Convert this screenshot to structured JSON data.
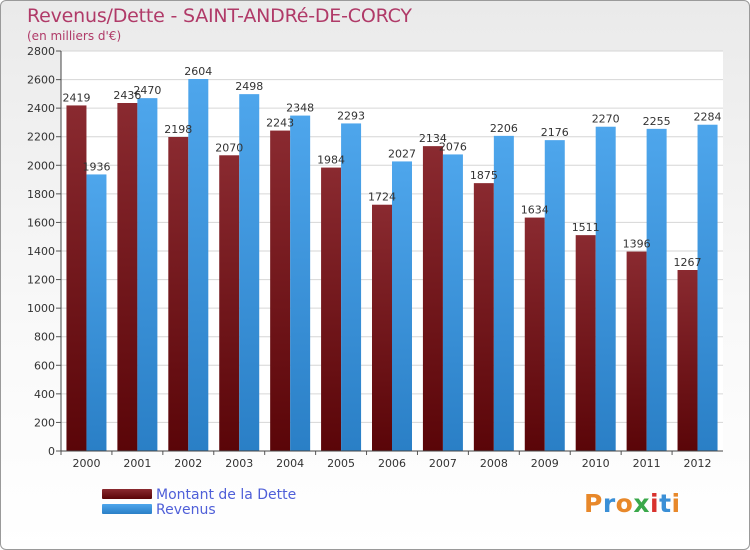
{
  "title": "Revenus/Dette - SAINT-ANDRé-DE-CORCY",
  "subtitle": "(en milliers d'€)",
  "logo": {
    "text": "Proxiti",
    "letters": [
      "P",
      "r",
      "o",
      "x",
      "i",
      "t",
      "i"
    ],
    "colors": [
      "#e8882a",
      "#3a8fd6",
      "#e8882a",
      "#3aa84a",
      "#d8322e",
      "#3a8fd6",
      "#e8882a"
    ]
  },
  "legend": [
    {
      "label": "Montant de la Dette",
      "color": "#6b0f12"
    },
    {
      "label": "Revenus",
      "color": "#3d97e0"
    }
  ],
  "chart_data": {
    "type": "bar",
    "title": "Revenus/Dette - SAINT-ANDRé-DE-CORCY",
    "ylabel": "(en milliers d'€)",
    "xlabel": "",
    "categories": [
      "2000",
      "2001",
      "2002",
      "2003",
      "2004",
      "2005",
      "2006",
      "2007",
      "2008",
      "2009",
      "2010",
      "2011",
      "2012"
    ],
    "series": [
      {
        "name": "Montant de la Dette",
        "color": "#6b0f12",
        "values": [
          2419,
          2436,
          2198,
          2070,
          2243,
          1984,
          1724,
          2134,
          1875,
          1634,
          1511,
          1396,
          1267
        ]
      },
      {
        "name": "Revenus",
        "color": "#3d97e0",
        "values": [
          1936,
          2470,
          2604,
          2498,
          2348,
          2293,
          2027,
          2076,
          2206,
          2176,
          2270,
          2255,
          2284
        ]
      }
    ],
    "ylim": [
      0,
      2800
    ],
    "yticks": [
      0,
      200,
      400,
      600,
      800,
      1000,
      1200,
      1400,
      1600,
      1800,
      2000,
      2200,
      2400,
      2600,
      2800
    ],
    "grid": true,
    "legend_position": "bottom-left"
  }
}
